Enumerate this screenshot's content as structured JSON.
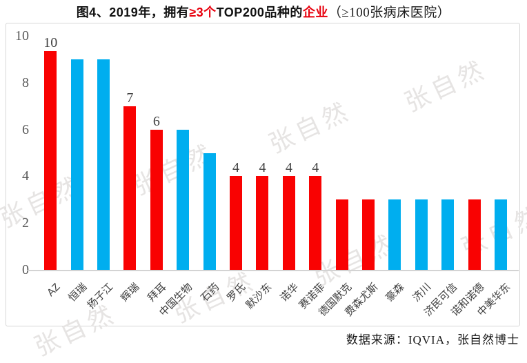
{
  "title": {
    "part1": "图4、2019年，拥有",
    "part2": "≥3个",
    "part3": "TOP200品种的",
    "part4": "企业",
    "part5": "（≥100张病床医院）"
  },
  "source": "数据来源：IQVIA，张自然博士",
  "watermark": {
    "text": "张自然"
  },
  "colors": {
    "bar_red": "#f90202",
    "bar_blue": "#00aeef",
    "title_red": "#e8000d",
    "axis_text": "#595959",
    "label_text": "#3f3f3f",
    "frame_border": "#d6d6d6",
    "axis_line": "#d3d3d3",
    "watermark": "#e6e4e3"
  },
  "chart_data": {
    "type": "bar",
    "title": "图4、2019年，拥有≥3个TOP200品种的企业（≥100张病床医院）",
    "categories": [
      "AZ",
      "恒瑞",
      "扬子江",
      "辉瑞",
      "拜耳",
      "中国生物",
      "石药",
      "罗氏",
      "默沙东",
      "诺华",
      "赛诺菲",
      "德国默克",
      "费森尤斯",
      "豪森",
      "济川",
      "济民可信",
      "诺和诺德",
      "中美华东"
    ],
    "values": [
      10,
      9,
      9,
      7,
      6,
      6,
      5,
      4,
      4,
      4,
      4,
      3,
      3,
      3,
      3,
      3,
      3,
      3
    ],
    "bar_colors": [
      "red",
      "blue",
      "blue",
      "red",
      "red",
      "blue",
      "blue",
      "red",
      "red",
      "red",
      "red",
      "red",
      "red",
      "blue",
      "blue",
      "blue",
      "red",
      "blue"
    ],
    "data_labels": [
      "10",
      "",
      "",
      "7",
      "6",
      "",
      "",
      "4",
      "4",
      "4",
      "4",
      "",
      "",
      "",
      "",
      "",
      "",
      ""
    ],
    "xlabel": "",
    "ylabel": "",
    "ylim": [
      0,
      10
    ],
    "yticks": [
      0,
      2,
      4,
      6,
      8,
      10
    ],
    "grid": false,
    "legend": null,
    "x_tick_rotation": 45,
    "source": "数据来源：IQVIA，张自然博士"
  }
}
